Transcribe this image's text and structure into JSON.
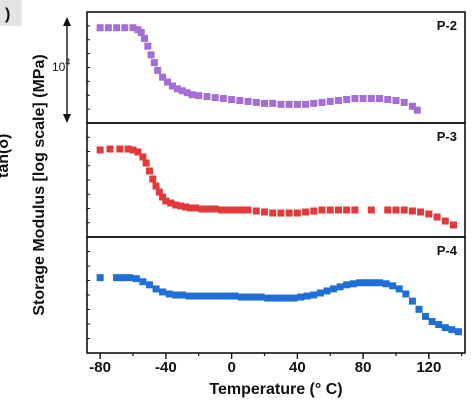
{
  "chart_data": {
    "type": "scatter",
    "panel_label_fragment": ")",
    "left_axis_fragment": "tan(δ)",
    "xlabel": "Temperature (° C)",
    "ylabel": "Storage Modulus [log scale] (MPa)",
    "y_tick_label": "10",
    "y_tick_exponent": "4",
    "xlim": [
      -88,
      142
    ],
    "x_ticks": [
      -80,
      -40,
      0,
      40,
      80,
      120
    ],
    "y_scale": "log",
    "grid": false,
    "panels": [
      {
        "name": "P-2",
        "color": "#a36fd6",
        "ylim": [
          0,
          1
        ],
        "x": [
          -80,
          -75,
          -70,
          -65,
          -60,
          -57,
          -55,
          -53,
          -51,
          -49,
          -47,
          -45,
          -42,
          -39,
          -36,
          -33,
          -30,
          -27,
          -24,
          -20,
          -15,
          -10,
          -5,
          0,
          5,
          10,
          15,
          20,
          25,
          30,
          35,
          40,
          45,
          50,
          55,
          60,
          65,
          70,
          75,
          80,
          85,
          90,
          95,
          100,
          105,
          110,
          113
        ],
        "y": [
          0.91,
          0.91,
          0.91,
          0.91,
          0.91,
          0.89,
          0.86,
          0.8,
          0.72,
          0.63,
          0.55,
          0.47,
          0.4,
          0.35,
          0.31,
          0.28,
          0.26,
          0.24,
          0.22,
          0.21,
          0.2,
          0.19,
          0.18,
          0.17,
          0.16,
          0.15,
          0.14,
          0.13,
          0.13,
          0.12,
          0.12,
          0.12,
          0.12,
          0.13,
          0.14,
          0.15,
          0.16,
          0.17,
          0.18,
          0.18,
          0.18,
          0.18,
          0.17,
          0.16,
          0.14,
          0.1,
          0.06
        ]
      },
      {
        "name": "P-3",
        "color": "#e23a3a",
        "ylim": [
          0,
          1
        ],
        "x": [
          -80,
          -74,
          -68,
          -63,
          -60,
          -57,
          -54,
          -52,
          -50,
          -48,
          -46,
          -44,
          -42,
          -40,
          -37,
          -34,
          -31,
          -28,
          -25,
          -22,
          -18,
          -14,
          -10,
          -6,
          -2,
          2,
          6,
          10,
          15,
          20,
          25,
          30,
          35,
          40,
          45,
          50,
          55,
          60,
          65,
          70,
          75,
          85,
          95,
          100,
          105,
          110,
          115,
          120,
          125,
          130,
          135
        ],
        "y": [
          0.8,
          0.81,
          0.81,
          0.81,
          0.8,
          0.78,
          0.73,
          0.67,
          0.59,
          0.51,
          0.44,
          0.38,
          0.33,
          0.29,
          0.27,
          0.25,
          0.24,
          0.23,
          0.22,
          0.22,
          0.21,
          0.21,
          0.21,
          0.2,
          0.2,
          0.2,
          0.2,
          0.2,
          0.19,
          0.18,
          0.17,
          0.17,
          0.17,
          0.17,
          0.18,
          0.19,
          0.2,
          0.2,
          0.2,
          0.2,
          0.2,
          0.2,
          0.2,
          0.2,
          0.2,
          0.19,
          0.18,
          0.16,
          0.13,
          0.09,
          0.05
        ]
      },
      {
        "name": "P-4",
        "color": "#1f6fd6",
        "ylim": [
          0,
          1
        ],
        "x": [
          -80,
          -70,
          -66,
          -62,
          -58,
          -54,
          -50,
          -46,
          -42,
          -38,
          -34,
          -30,
          -26,
          -22,
          -18,
          -14,
          -10,
          -6,
          -2,
          2,
          6,
          10,
          14,
          18,
          22,
          26,
          30,
          34,
          38,
          42,
          46,
          50,
          54,
          58,
          62,
          66,
          70,
          74,
          78,
          82,
          86,
          90,
          94,
          98,
          102,
          106,
          110,
          114,
          118,
          122,
          126,
          130,
          134,
          138
        ],
        "y": [
          0.67,
          0.67,
          0.67,
          0.67,
          0.66,
          0.63,
          0.6,
          0.56,
          0.53,
          0.51,
          0.5,
          0.5,
          0.49,
          0.49,
          0.49,
          0.49,
          0.49,
          0.49,
          0.49,
          0.49,
          0.48,
          0.48,
          0.48,
          0.48,
          0.47,
          0.47,
          0.47,
          0.47,
          0.47,
          0.48,
          0.49,
          0.5,
          0.52,
          0.54,
          0.56,
          0.58,
          0.6,
          0.61,
          0.62,
          0.62,
          0.62,
          0.62,
          0.61,
          0.59,
          0.56,
          0.51,
          0.44,
          0.36,
          0.29,
          0.24,
          0.21,
          0.18,
          0.16,
          0.14
        ]
      }
    ]
  }
}
